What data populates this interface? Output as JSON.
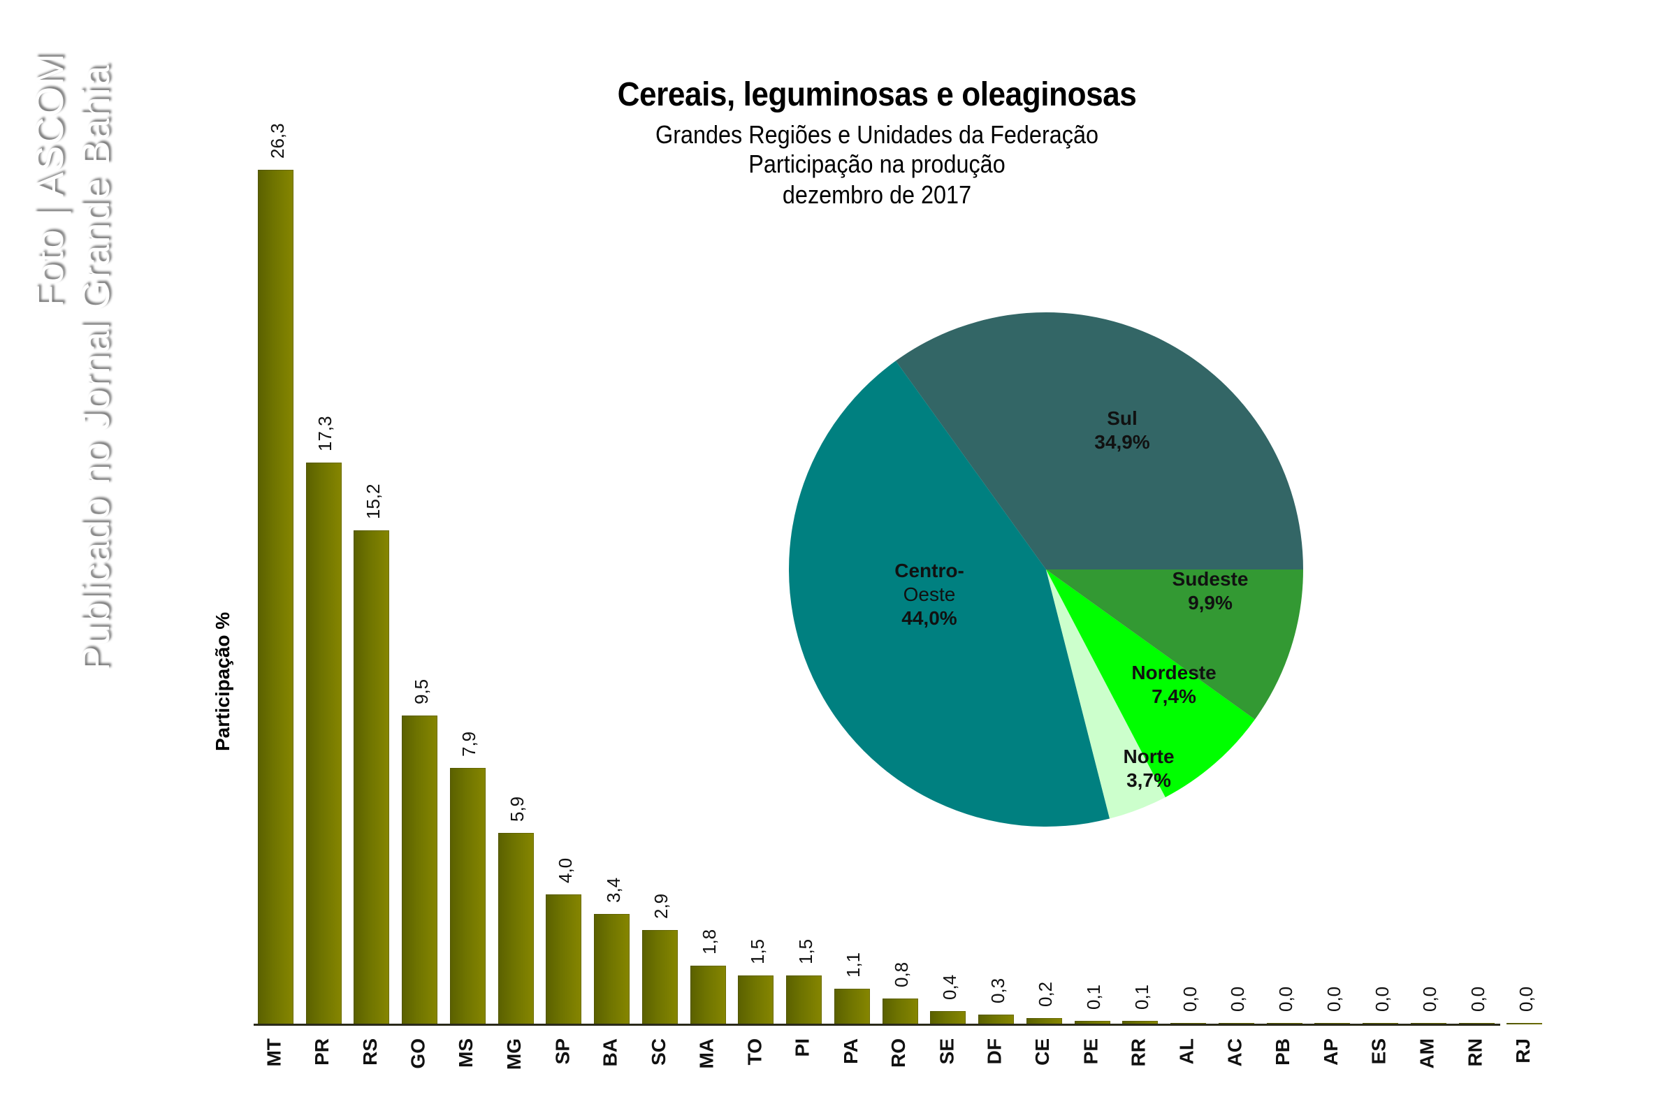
{
  "watermark": {
    "line1": "Foto | ASCOM",
    "line2": "Publicado no Jornal Grande Bahia"
  },
  "header": {
    "title": "Cereais, leguminosas  e oleaginosas",
    "subtitle1": "Grandes  Regiões  e Unidades  da Federação",
    "subtitle2": "Participação na produção",
    "subtitle3": "dezembro de 2017"
  },
  "colors": {
    "bar_dark": "#5a6000",
    "bar_light": "#868600",
    "sul": "#336666",
    "centro_oeste": "#008080",
    "norte": "#ccffcc",
    "nordeste": "#00ff00",
    "sudeste": "#339933"
  },
  "chart_data": [
    {
      "type": "bar",
      "title": "Cereais, leguminosas e oleaginosas",
      "subtitle": "Grandes Regiões e Unidades da Federação — Participação na produção — dezembro de 2017",
      "xlabel": "",
      "ylabel": "Participação %",
      "grid": false,
      "legend": null,
      "categories": [
        "MT",
        "PR",
        "RS",
        "GO",
        "MS",
        "MG",
        "SP",
        "BA",
        "SC",
        "MA",
        "TO",
        "PI",
        "PA",
        "RO",
        "SE",
        "DF",
        "CE",
        "PE",
        "RR",
        "AL",
        "AC",
        "PB",
        "AP",
        "ES",
        "AM",
        "RN",
        "RJ"
      ],
      "values": [
        26.3,
        17.3,
        15.2,
        9.5,
        7.9,
        5.9,
        4.0,
        3.4,
        2.9,
        1.8,
        1.5,
        1.5,
        1.1,
        0.8,
        0.4,
        0.3,
        0.2,
        0.1,
        0.1,
        0.0,
        0.0,
        0.0,
        0.0,
        0.0,
        0.0,
        0.0,
        0.0
      ],
      "value_labels": [
        "26,3",
        "17,3",
        "15,2",
        "9,5",
        "7,9",
        "5,9",
        "4,0",
        "3,4",
        "2,9",
        "1,8",
        "1,5",
        "1,5",
        "1,1",
        "0,8",
        "0,4",
        "0,3",
        "0,2",
        "0,1",
        "0,1",
        "0,0",
        "0,0",
        "0,0",
        "0,0",
        "0,0",
        "0,0",
        "0,0",
        "0,0"
      ],
      "ylim": [
        0,
        27
      ]
    },
    {
      "type": "pie",
      "title": "Participação por Grande Região",
      "start_angle_deg": 0,
      "direction": "counterclockwise",
      "slices": [
        {
          "label": "Sul",
          "label_lines": [
            "Sul"
          ],
          "value": 34.9,
          "display": "34,9%",
          "color": "#336666"
        },
        {
          "label": "Centro-Oeste",
          "label_lines": [
            "Centro-",
            "Oeste"
          ],
          "value": 44.0,
          "display": "44,0%",
          "color": "#008080"
        },
        {
          "label": "Norte",
          "label_lines": [
            "Norte"
          ],
          "value": 3.7,
          "display": "3,7%",
          "color": "#ccffcc"
        },
        {
          "label": "Nordeste",
          "label_lines": [
            "Nordeste"
          ],
          "value": 7.4,
          "display": "7,4%",
          "color": "#00ff00"
        },
        {
          "label": "Sudeste",
          "label_lines": [
            "Sudeste"
          ],
          "value": 9.9,
          "display": "9,9%",
          "color": "#339933"
        }
      ]
    }
  ]
}
